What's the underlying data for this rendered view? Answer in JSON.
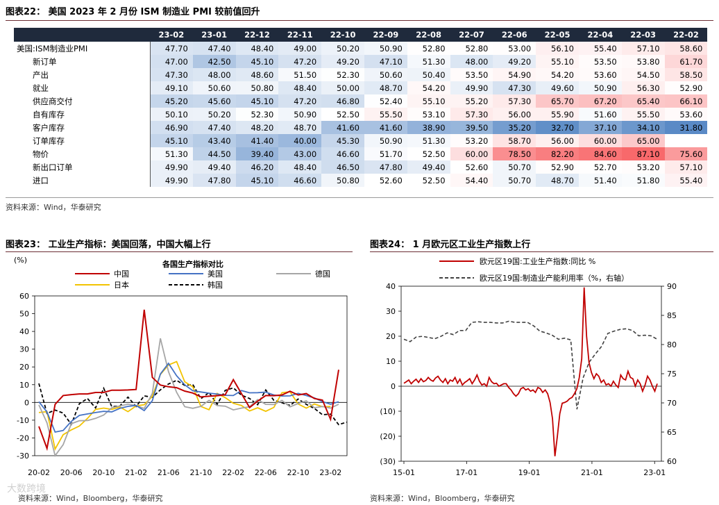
{
  "fig22": {
    "title": "图表22： 美国 2023 年 2 月份 ISM 制造业 PMI 较前值回升",
    "source": "资料来源：Wind，华泰研究",
    "columns": [
      "23-02",
      "23-01",
      "22-12",
      "22-11",
      "22-10",
      "22-09",
      "22-08",
      "22-07",
      "22-06",
      "22-05",
      "22-04",
      "22-03",
      "22-02"
    ],
    "rows": [
      {
        "label": "美国:ISM制造业PMI",
        "values": [
          "47.70",
          "47.40",
          "48.40",
          "49.00",
          "50.20",
          "50.90",
          "52.80",
          "52.80",
          "53.00",
          "56.10",
          "55.40",
          "57.10",
          "58.60"
        ]
      },
      {
        "label": "新订单",
        "values": [
          "47.00",
          "42.50",
          "45.10",
          "47.20",
          "49.20",
          "47.10",
          "51.30",
          "48.00",
          "49.20",
          "55.10",
          "53.50",
          "53.80",
          "61.70"
        ]
      },
      {
        "label": "产出",
        "values": [
          "47.30",
          "48.00",
          "48.60",
          "51.50",
          "52.30",
          "50.60",
          "50.40",
          "53.50",
          "54.90",
          "54.20",
          "53.60",
          "54.50",
          "58.50"
        ]
      },
      {
        "label": "就业",
        "values": [
          "49.10",
          "50.60",
          "50.80",
          "48.40",
          "50.00",
          "48.70",
          "54.20",
          "49.90",
          "47.30",
          "49.60",
          "50.90",
          "56.30",
          "52.90"
        ]
      },
      {
        "label": "供应商交付",
        "values": [
          "45.20",
          "45.60",
          "45.10",
          "47.20",
          "46.80",
          "52.40",
          "55.10",
          "55.20",
          "57.30",
          "65.70",
          "67.20",
          "65.40",
          "66.10"
        ]
      },
      {
        "label": "自有库存",
        "values": [
          "50.10",
          "50.20",
          "52.30",
          "50.90",
          "52.50",
          "55.50",
          "53.10",
          "57.30",
          "56.00",
          "55.90",
          "51.60",
          "55.50",
          "53.60"
        ]
      },
      {
        "label": "客户库存",
        "values": [
          "46.90",
          "47.40",
          "48.20",
          "48.70",
          "41.60",
          "41.60",
          "38.90",
          "39.50",
          "35.20",
          "32.70",
          "37.10",
          "34.10",
          "31.80"
        ]
      },
      {
        "label": "订单库存",
        "values": [
          "45.10",
          "43.40",
          "41.40",
          "40.00",
          "45.30",
          "50.90",
          "51.30",
          "53.20",
          "58.70",
          "56.00",
          "60.00",
          "65.00",
          ""
        ]
      },
      {
        "label": "物价",
        "values": [
          "51.30",
          "44.50",
          "39.40",
          "43.00",
          "46.60",
          "51.70",
          "52.50",
          "60.00",
          "78.50",
          "82.20",
          "84.60",
          "87.10",
          "75.60"
        ]
      },
      {
        "label": "新出口订单",
        "values": [
          "49.90",
          "49.40",
          "46.20",
          "48.40",
          "46.50",
          "47.80",
          "49.40",
          "52.60",
          "50.70",
          "52.90",
          "52.70",
          "53.20",
          "57.10"
        ]
      },
      {
        "label": "进口",
        "values": [
          "49.90",
          "47.80",
          "45.10",
          "46.60",
          "50.80",
          "52.60",
          "52.50",
          "54.40",
          "50.70",
          "48.70",
          "51.40",
          "51.80",
          "55.40"
        ]
      }
    ]
  },
  "fig23": {
    "title": "图表23： 工业生产指标：美国回落，中国大幅上行",
    "source": "资料来源：Wind，Bloomberg，华泰研究",
    "watermark": "大数跨境",
    "chart_data": {
      "type": "line",
      "title": "各国生产指标对比",
      "ylabel": "(%)",
      "ylim": [
        -30,
        60
      ],
      "yticks": [
        -30,
        -20,
        -10,
        0,
        10,
        20,
        30,
        40,
        50,
        60
      ],
      "x_tick_labels": [
        "20-02",
        "20-06",
        "20-10",
        "21-02",
        "21-06",
        "21-10",
        "22-02",
        "22-06",
        "22-10",
        "23-02"
      ],
      "legend_placement": "top",
      "series": [
        {
          "name": "中国",
          "color": "#c00000",
          "style": "solid",
          "values": [
            -13.5,
            -25.9,
            -1.1,
            3.9,
            4.4,
            4.8,
            4.8,
            5.6,
            5.6,
            6.9,
            6.9,
            7.0,
            7.3,
            52.2,
            14.1,
            9.8,
            8.8,
            8.3,
            6.4,
            5.3,
            3.1,
            3.5,
            3.8,
            4.3,
            12.8,
            5.0,
            -2.9,
            0.7,
            3.9,
            3.8,
            4.2,
            6.3,
            4.2,
            5.0,
            2.2,
            1.3,
            -9.5,
            18.4
          ]
        },
        {
          "name": "美国",
          "color": "#4472c4",
          "style": "solid",
          "values": [
            0.4,
            -5.4,
            -16.7,
            -15.8,
            -10.7,
            -7.3,
            -6.5,
            -5.7,
            -5.0,
            -5.3,
            -3.3,
            -2.2,
            -1.7,
            -4.6,
            1.0,
            16.0,
            22.0,
            15.0,
            9.9,
            6.6,
            5.9,
            5.2,
            4.7,
            4.0,
            3.9,
            6.7,
            5.4,
            5.5,
            5.8,
            4.2,
            3.6,
            3.7,
            5.1,
            3.9,
            2.5,
            0.5,
            -1.0,
            0.4
          ]
        },
        {
          "name": "德国",
          "color": "#a6a6a6",
          "style": "solid",
          "values": [
            -1.4,
            -11.5,
            -30.0,
            -23.8,
            -12.0,
            -10.3,
            -10.2,
            -9.0,
            -7.1,
            -3.0,
            -2.0,
            -1.0,
            -1.8,
            -3.4,
            5.1,
            36.1,
            17.3,
            5.7,
            -2.4,
            -3.3,
            -2.2,
            1.2,
            -1.8,
            -2.1,
            -4.2,
            -3.2,
            -2.4,
            1.6,
            -1.1,
            -1.2,
            1.1,
            -2.5,
            -0.6,
            0.9,
            -3.0,
            -2.3,
            -3.2,
            -1.0
          ]
        },
        {
          "name": "日本",
          "color": "#f2c300",
          "style": "solid",
          "values": [
            -5.7,
            -5.2,
            -26.3,
            -18.2,
            -15.5,
            -13.3,
            -9.0,
            -3.9,
            -3.2,
            -3.9,
            -2.6,
            -5.2,
            -2.0,
            -1.3,
            3.4,
            15.8,
            21.1,
            23.0,
            11.6,
            8.8,
            -2.3,
            -4.1,
            5.1,
            2.7,
            -0.5,
            -1.7,
            -4.8,
            -3.0,
            -5.0,
            -2.8,
            5.5,
            6.0,
            -0.9,
            -3.2,
            -0.9,
            -2.4,
            -2.3
          ]
        },
        {
          "name": "韩国",
          "color": "#000000",
          "style": "dashed",
          "values": [
            10.7,
            -6.2,
            -4.3,
            -6.0,
            -12.4,
            -0.7,
            2.2,
            -3.1,
            8.0,
            -2.4,
            -2.0,
            3.0,
            -2.3,
            3.7,
            2.9,
            7.1,
            10.4,
            12.4,
            9.6,
            10.1,
            2.1,
            5.6,
            -1.1,
            6.8,
            8.2,
            4.1,
            2.2,
            -1.3,
            7.0,
            1.2,
            -0.2,
            -1.7,
            1.9,
            -1.1,
            -3.4,
            -6.9,
            -6.6,
            -12.5,
            -11.1
          ]
        }
      ]
    }
  },
  "fig24": {
    "title": "图表24： 1 月欧元区工业生产指数上行",
    "source": "资料来源：Wind，Bloomberg，华泰研究",
    "chart_data": {
      "type": "line",
      "ylim_left": [
        -30,
        40
      ],
      "yticks_left": [
        "40",
        "30",
        "20",
        "10",
        "0",
        "(10)",
        "(20)",
        "(30)"
      ],
      "ylim_right": [
        60,
        90
      ],
      "yticks_right": [
        "90",
        "85",
        "80",
        "75",
        "70",
        "65",
        "60"
      ],
      "x_tick_labels": [
        "15-01",
        "17-01",
        "19-01",
        "21-01",
        "23-01"
      ],
      "legend_placement": "top",
      "series": [
        {
          "name": "欧元区19国:工业生产指数:同比 %",
          "axis": "left",
          "color": "#c00000",
          "style": "solid",
          "values": [
            1.2,
            1.8,
            2.5,
            1.0,
            2.0,
            2.8,
            1.5,
            3.0,
            1.8,
            2.3,
            3.5,
            2.5,
            2.0,
            3.3,
            4.0,
            2.5,
            1.5,
            3.0,
            1.0,
            2.5,
            2.0,
            3.5,
            1.2,
            2.8,
            0.5,
            1.5,
            2.2,
            3.0,
            1.0,
            2.5,
            4.5,
            2.0,
            0.5,
            1.0,
            0.0,
            3.5,
            1.8,
            1.0,
            1.2,
            0.0,
            0.5,
            1.0,
            1.0,
            -0.5,
            -1.5,
            -3.0,
            -4.0,
            -3.0,
            -1.0,
            -0.5,
            -1.5,
            -1.0,
            -2.0,
            -1.5,
            -2.5,
            -0.5,
            -1.0,
            -2.5,
            -1.5,
            -3.0,
            -6.5,
            -13.0,
            -28.0,
            -20.0,
            -11.0,
            -6.8,
            -6.5,
            -6.0,
            -5.0,
            -4.5,
            -3.0,
            -1.0,
            3.5,
            11.0,
            39.5,
            20.0,
            9.5,
            5.5,
            3.0,
            5.0,
            4.0,
            1.5,
            2.5,
            0.5,
            1.0,
            0.0,
            2.0,
            0.5,
            -0.5,
            4.5,
            3.0,
            2.5,
            6.0,
            3.5,
            3.0,
            0.0,
            2.5,
            1.0,
            -2.0,
            0.5,
            4.0,
            2.5,
            0.0,
            -2.0,
            1.0
          ]
        },
        {
          "name": "欧元区19国:制造业产能利用率（%，右轴）",
          "axis": "right",
          "color": "#404040",
          "style": "dashed",
          "values": [
            80.9,
            80.5,
            81.3,
            81.4,
            81.2,
            81.0,
            81.4,
            82.0,
            81.7,
            82.4,
            82.4,
            83.8,
            83.9,
            83.8,
            83.8,
            83.7,
            83.7,
            84.0,
            83.8,
            83.8,
            83.8,
            83.2,
            82.3,
            82.0,
            81.6,
            80.9,
            81.1,
            80.8,
            68.9,
            74.3,
            77.0,
            78.4,
            79.7,
            81.9,
            82.3,
            82.6,
            82.7,
            82.4,
            81.5,
            81.6,
            81.5,
            80.9
          ]
        }
      ]
    }
  }
}
